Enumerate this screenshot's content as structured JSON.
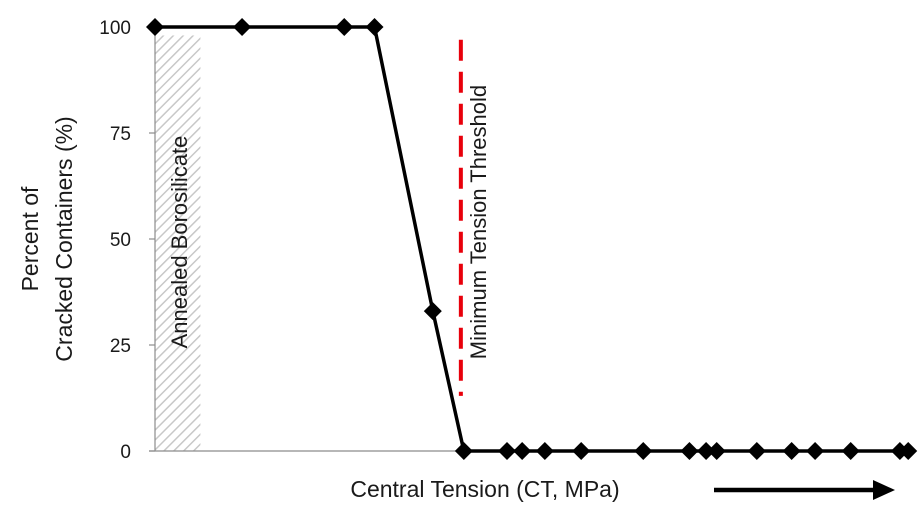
{
  "chart_data": {
    "type": "line",
    "title": "",
    "xlabel": "Central Tension (CT, MPa)",
    "ylabel_lines": [
      "Percent of",
      "Cracked Containers (%)"
    ],
    "yticks": [
      "0",
      "25",
      "50",
      "75",
      "100"
    ],
    "ylim": [
      0,
      100
    ],
    "xlim": [
      0,
      100
    ],
    "x_tick_labels_shown": false,
    "grid": false,
    "series": [
      {
        "color": "#000000",
        "marker": "diamond",
        "points": [
          {
            "x": 0,
            "y": 100
          },
          {
            "x": 11.5,
            "y": 100
          },
          {
            "x": 25,
            "y": 100
          },
          {
            "x": 29,
            "y": 100
          },
          {
            "x": 36.7,
            "y": 33
          },
          {
            "x": 40.8,
            "y": 0
          },
          {
            "x": 46.5,
            "y": 0
          },
          {
            "x": 48.5,
            "y": 0
          },
          {
            "x": 51.5,
            "y": 0
          },
          {
            "x": 56.3,
            "y": 0
          },
          {
            "x": 64.5,
            "y": 0
          },
          {
            "x": 70.6,
            "y": 0
          },
          {
            "x": 72.8,
            "y": 0
          },
          {
            "x": 74.2,
            "y": 0
          },
          {
            "x": 79.5,
            "y": 0
          },
          {
            "x": 84.1,
            "y": 0
          },
          {
            "x": 87.2,
            "y": 0
          },
          {
            "x": 91.9,
            "y": 0
          },
          {
            "x": 98.4,
            "y": 0
          },
          {
            "x": 99.5,
            "y": 0
          }
        ]
      }
    ],
    "annotations": {
      "annealed_region": {
        "label": "Annealed Borosilicate",
        "x_range": [
          0,
          6
        ],
        "y_top": 98,
        "fill": "hatched-gray"
      },
      "threshold_line": {
        "label": "Minimum Tension Threshold",
        "x": 40.8,
        "y_range": [
          13,
          97
        ],
        "color": "#e8000b",
        "style": "dashed"
      },
      "direction_arrow": "increasing-x-arrow"
    }
  }
}
